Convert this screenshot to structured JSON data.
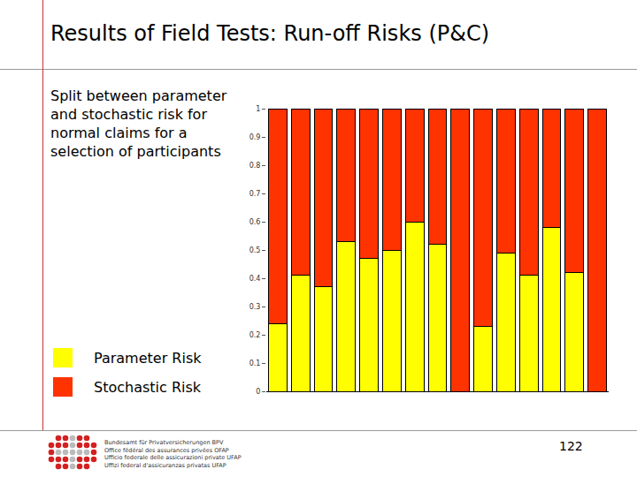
{
  "title": "Results of Field Tests: Run-off Risks (P&C)",
  "text_lines": [
    "Split between parameter",
    "and stochastic risk for",
    "normal claims for a",
    "selection of participants"
  ],
  "footer": {
    "org_lines": [
      "Bundesamt für Privatversicherungen BPV",
      "Office fédéral des assurances privées OFAP",
      "Ufficio federale delle assicurazioni private UFAP",
      "Uffizi federal d'assicuranzas privatas UFAP"
    ],
    "page": "122"
  },
  "chart_data": {
    "type": "bar",
    "stacked": true,
    "tick_labels": "y",
    "categories": [
      null,
      null,
      null,
      null,
      null,
      null,
      null,
      null,
      null,
      null,
      null,
      null,
      null,
      null,
      null
    ],
    "series": [
      {
        "name": "Parameter Risk",
        "color": "#ffff00",
        "values": [
          0.24,
          0.41,
          0.37,
          0.53,
          0.47,
          0.5,
          0.6,
          0.52,
          0,
          0.23,
          0.49,
          0.41,
          0.58,
          0.42,
          0
        ]
      },
      {
        "name": "Stochastic Risk",
        "color": "#ff3300",
        "values": [
          0.76,
          0.59,
          0.63,
          0.47,
          0.53,
          0.5,
          0.4,
          0.48,
          1,
          0.77,
          0.51,
          0.59,
          0.42,
          0.58,
          1
        ]
      }
    ],
    "ylim": [
      0,
      1
    ],
    "yticks": [
      0,
      0.1,
      0.2,
      0.3,
      0.4,
      0.5,
      0.6,
      0.7,
      0.8,
      0.9,
      1
    ]
  }
}
